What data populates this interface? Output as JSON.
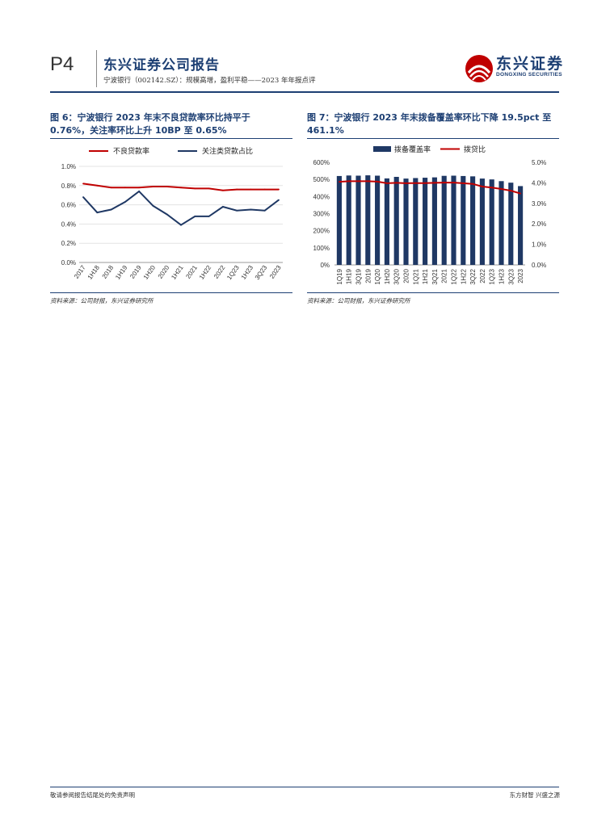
{
  "header": {
    "page_number": "P4",
    "report_title": "东兴证券公司报告",
    "report_subtitle": "宁波银行（002142.SZ）：规模高增，盈利平稳——2023 年年报点评",
    "logo_cn": "东兴证券",
    "logo_en": "DONGXING SECURITIES"
  },
  "figures": [
    {
      "title": "图 6：宁波银行 2023 年末不良贷款率环比持平于 0.76%，关注率环比上升 10BP 至 0.65%",
      "source": "资料来源：公司财报，东兴证券研究所",
      "chart_data": {
        "type": "line",
        "categories": [
          "2017",
          "1H18",
          "2018",
          "1H19",
          "2019",
          "1H20",
          "2020",
          "1H21",
          "2021",
          "1H22",
          "2022",
          "1Q23",
          "1H23",
          "3Q23",
          "2023"
        ],
        "series": [
          {
            "name": "不良贷款率",
            "color": "#c00000",
            "values": [
              0.82,
              0.8,
              0.78,
              0.78,
              0.78,
              0.79,
              0.79,
              0.78,
              0.77,
              0.77,
              0.75,
              0.76,
              0.76,
              0.76,
              0.76
            ]
          },
          {
            "name": "关注类贷款占比",
            "color": "#1f3864",
            "values": [
              0.68,
              0.52,
              0.55,
              0.63,
              0.74,
              0.59,
              0.5,
              0.39,
              0.48,
              0.48,
              0.58,
              0.54,
              0.55,
              0.54,
              0.65
            ]
          }
        ],
        "ylim": [
          0.0,
          1.0
        ],
        "yticks": [
          "0.0%",
          "0.2%",
          "0.4%",
          "0.6%",
          "0.8%",
          "1.0%"
        ],
        "legend": "top"
      }
    },
    {
      "title": "图 7：宁波银行 2023 年末拨备覆盖率环比下降 19.5pct 至 461.1%",
      "source": "资料来源：公司财报，东兴证券研究所",
      "chart_data": {
        "type": "bar",
        "categories": [
          "1Q19",
          "1H19",
          "3Q19",
          "2019",
          "1Q20",
          "1H20",
          "3Q20",
          "2020",
          "1Q21",
          "1H21",
          "3Q21",
          "2021",
          "1Q22",
          "1H22",
          "3Q22",
          "2022",
          "1Q23",
          "1H23",
          "3Q23",
          "2023"
        ],
        "series": [
          {
            "name": "拨备覆盖率",
            "type": "bar",
            "axis": "left",
            "color": "#1f3864",
            "values": [
              520,
              523,
              522,
              524,
              522,
              506,
              515,
              505,
              508,
              510,
              512,
              521,
              522,
              520,
              518,
              505,
              500,
              490,
              481,
              461
            ]
          },
          {
            "name": "拨贷比",
            "type": "line",
            "axis": "right",
            "color": "#c00000",
            "values": [
              4.05,
              4.08,
              4.08,
              4.08,
              4.06,
              3.98,
              4.0,
              3.98,
              3.99,
              3.99,
              4.0,
              4.01,
              4.01,
              3.98,
              3.95,
              3.82,
              3.77,
              3.7,
              3.62,
              3.48
            ]
          }
        ],
        "ylim": [
          0,
          600
        ],
        "yticks": [
          "0%",
          "100%",
          "200%",
          "300%",
          "400%",
          "500%",
          "600%"
        ],
        "y2lim": [
          0.0,
          5.0
        ],
        "y2ticks": [
          "0.0%",
          "1.0%",
          "2.0%",
          "3.0%",
          "4.0%",
          "5.0%"
        ],
        "legend": "top"
      }
    }
  ],
  "footer": {
    "left": "敬请参阅报告结尾处的免责声明",
    "right": "东方财智  兴盛之源"
  },
  "colors": {
    "brand": "#1d3f73",
    "red": "#c00000",
    "navy": "#1f3864"
  }
}
